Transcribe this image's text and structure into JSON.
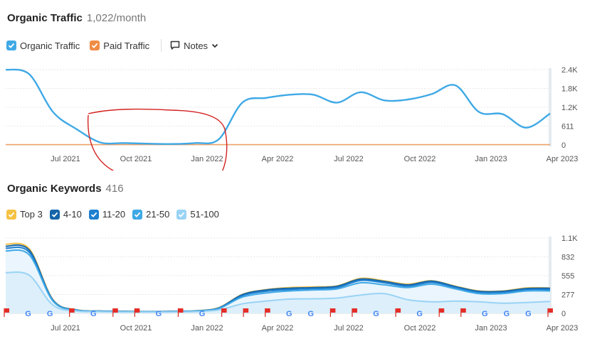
{
  "traffic": {
    "title": "Organic Traffic",
    "subtitle": "1,022/month",
    "legend": [
      {
        "label": "Organic Traffic",
        "color": "#3fa9e6"
      },
      {
        "label": "Paid Traffic",
        "color": "#f08c44"
      }
    ],
    "notes_label": "Notes"
  },
  "keywords": {
    "title": "Organic Keywords",
    "subtitle": "416",
    "legend": [
      {
        "label": "Top 3",
        "color": "#f6c244"
      },
      {
        "label": "4-10",
        "color": "#1665a8"
      },
      {
        "label": "11-20",
        "color": "#1e7fcf"
      },
      {
        "label": "21-50",
        "color": "#3fa9e6"
      },
      {
        "label": "51-100",
        "color": "#9ad3f5"
      }
    ]
  },
  "chart_data": [
    {
      "type": "line",
      "x_labels": [
        "Jul 2021",
        "Oct 2021",
        "Jan 2022",
        "Apr 2022",
        "Jul 2022",
        "Oct 2022",
        "Jan 2023",
        "Apr 2023"
      ],
      "y_ticks": [
        "2.4K",
        "1.8K",
        "1.2K",
        "611",
        "0"
      ],
      "ylim": [
        0,
        2400
      ],
      "months": [
        "Apr 2021",
        "May 2021",
        "Jun 2021",
        "Jul 2021",
        "Aug 2021",
        "Sep 2021",
        "Oct 2021",
        "Nov 2021",
        "Dec 2021",
        "Jan 2022",
        "Feb 2022",
        "Mar 2022",
        "Apr 2022",
        "May 2022",
        "Jun 2022",
        "Jul 2022",
        "Aug 2022",
        "Sep 2022",
        "Oct 2022",
        "Nov 2022",
        "Dec 2022",
        "Jan 2023",
        "Feb 2023",
        "Mar 2023"
      ],
      "series": [
        {
          "name": "Organic Traffic",
          "color": "#3fa9e6",
          "values": [
            2400,
            2250,
            1050,
            500,
            80,
            60,
            40,
            30,
            60,
            180,
            1350,
            1500,
            1600,
            1600,
            1350,
            1680,
            1420,
            1450,
            1620,
            1900,
            1050,
            980,
            550,
            1000
          ]
        },
        {
          "name": "Paid Traffic",
          "color": "#f08c44",
          "values": [
            0,
            0,
            0,
            0,
            0,
            0,
            0,
            0,
            0,
            0,
            0,
            0,
            0,
            0,
            0,
            0,
            0,
            0,
            0,
            0,
            0,
            0,
            0,
            0
          ]
        }
      ]
    },
    {
      "type": "area",
      "x_labels": [
        "Jul 2021",
        "Oct 2021",
        "Jan 2022",
        "Apr 2022",
        "Jul 2022",
        "Oct 2022",
        "Jan 2023",
        "Apr 2023"
      ],
      "y_ticks": [
        "1.1K",
        "832",
        "555",
        "277",
        "0"
      ],
      "ylim": [
        0,
        1110
      ],
      "months": [
        "Apr 2021",
        "May 2021",
        "Jun 2021",
        "Jul 2021",
        "Aug 2021",
        "Sep 2021",
        "Oct 2021",
        "Nov 2021",
        "Dec 2021",
        "Jan 2022",
        "Feb 2022",
        "Mar 2022",
        "Apr 2022",
        "May 2022",
        "Jun 2022",
        "Jul 2022",
        "Aug 2022",
        "Sep 2022",
        "Oct 2022",
        "Nov 2022",
        "Dec 2022",
        "Jan 2023",
        "Feb 2023",
        "Mar 2023"
      ],
      "stacked_cumulative": true,
      "series": [
        {
          "name": "51-100",
          "color": "#9ad3f5",
          "values": [
            600,
            560,
            120,
            35,
            25,
            20,
            18,
            20,
            25,
            50,
            140,
            180,
            210,
            215,
            225,
            270,
            290,
            200,
            170,
            180,
            170,
            150,
            160,
            175
          ]
        },
        {
          "name": "21-50",
          "color": "#3fa9e6",
          "values": [
            920,
            860,
            180,
            45,
            30,
            25,
            22,
            25,
            32,
            70,
            240,
            300,
            330,
            345,
            360,
            450,
            420,
            380,
            430,
            360,
            290,
            290,
            330,
            330
          ]
        },
        {
          "name": "11-20",
          "color": "#1e7fcf",
          "values": [
            960,
            900,
            190,
            48,
            32,
            27,
            24,
            27,
            34,
            75,
            260,
            325,
            350,
            365,
            380,
            485,
            450,
            400,
            455,
            380,
            310,
            310,
            350,
            350
          ]
        },
        {
          "name": "4-10",
          "color": "#1665a8",
          "values": [
            990,
            930,
            195,
            50,
            33,
            28,
            25,
            28,
            36,
            80,
            275,
            345,
            370,
            380,
            400,
            505,
            470,
            420,
            475,
            395,
            325,
            325,
            365,
            370
          ]
        },
        {
          "name": "Top 3",
          "color": "#f6c244",
          "values": [
            1020,
            950,
            200,
            52,
            34,
            29,
            26,
            29,
            37,
            83,
            280,
            350,
            380,
            390,
            405,
            515,
            480,
            430,
            480,
            400,
            330,
            330,
            375,
            375
          ]
        }
      ],
      "markers": [
        "flag",
        "G",
        "G",
        "flag",
        "G",
        "flag",
        "flag",
        "G",
        "flag",
        "G",
        "flag",
        "flag",
        "flag",
        "G",
        "G",
        "flag",
        "flag",
        "G",
        "flag",
        "G",
        "flag",
        "flag",
        "G",
        "G",
        "G",
        "flag"
      ]
    }
  ]
}
